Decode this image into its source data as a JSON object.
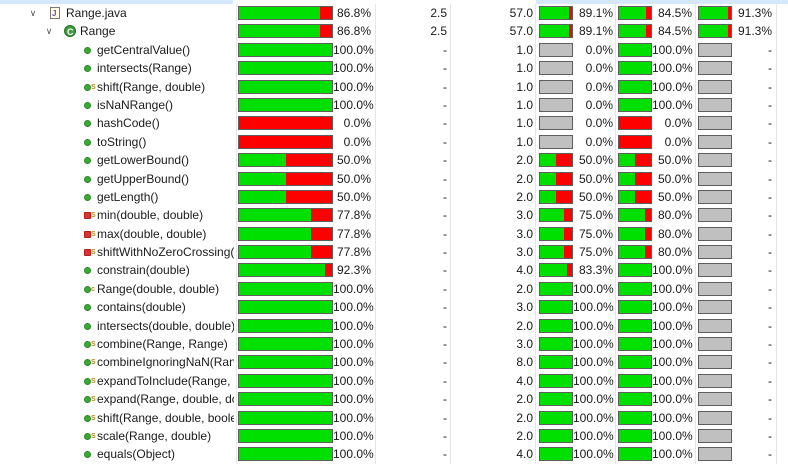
{
  "colors": {
    "covered": "#00e000",
    "missed": "#ff0000",
    "empty": "#c0c0c0",
    "selection": "#cce8ff"
  },
  "rows": [
    {
      "level": 0,
      "icon": "java-file-icon",
      "toggle": "expanded",
      "name": "Range.java",
      "cov": 86.8,
      "cov_label": "86.8%",
      "cx": "2.5",
      "cc": "57.0",
      "c1": 89.1,
      "c1_label": "89.1%",
      "c2": 84.5,
      "c2_label": "84.5%",
      "c3": 91.3,
      "c3_label": "91.3%"
    },
    {
      "level": 1,
      "icon": "class-icon",
      "toggle": "expanded",
      "name": "Range",
      "cov": 86.8,
      "cov_label": "86.8%",
      "cx": "2.5",
      "cc": "57.0",
      "c1": 89.1,
      "c1_label": "89.1%",
      "c2": 84.5,
      "c2_label": "84.5%",
      "c3": 91.3,
      "c3_label": "91.3%"
    },
    {
      "level": 2,
      "icon": "public-method-icon",
      "name": "getCentralValue()",
      "cov": 100,
      "cov_label": "100.0%",
      "cx": "-",
      "cc": "1.0",
      "c1": null,
      "c1_label": "0.0%",
      "c2": 100,
      "c2_label": "100.0%",
      "c3": null,
      "c3_label": "-"
    },
    {
      "level": 2,
      "icon": "public-method-icon",
      "name": "intersects(Range)",
      "cov": 100,
      "cov_label": "100.0%",
      "cx": "-",
      "cc": "1.0",
      "c1": null,
      "c1_label": "0.0%",
      "c2": 100,
      "c2_label": "100.0%",
      "c3": null,
      "c3_label": "-"
    },
    {
      "level": 2,
      "icon": "public-method-icon",
      "badge": "S",
      "name": "shift(Range, double)",
      "cov": 100,
      "cov_label": "100.0%",
      "cx": "-",
      "cc": "1.0",
      "c1": null,
      "c1_label": "0.0%",
      "c2": 100,
      "c2_label": "100.0%",
      "c3": null,
      "c3_label": "-"
    },
    {
      "level": 2,
      "icon": "public-method-icon",
      "name": "isNaNRange()",
      "cov": 100,
      "cov_label": "100.0%",
      "cx": "-",
      "cc": "1.0",
      "c1": null,
      "c1_label": "0.0%",
      "c2": 100,
      "c2_label": "100.0%",
      "c3": null,
      "c3_label": "-"
    },
    {
      "level": 2,
      "icon": "public-method-icon",
      "name": "hashCode()",
      "cov": 0,
      "cov_label": "0.0%",
      "cx": "-",
      "cc": "1.0",
      "c1": null,
      "c1_label": "0.0%",
      "c2": 0,
      "c2_label": "0.0%",
      "c3": null,
      "c3_label": "-"
    },
    {
      "level": 2,
      "icon": "public-method-icon",
      "name": "toString()",
      "cov": 0,
      "cov_label": "0.0%",
      "cx": "-",
      "cc": "1.0",
      "c1": null,
      "c1_label": "0.0%",
      "c2": 0,
      "c2_label": "0.0%",
      "c3": null,
      "c3_label": "-"
    },
    {
      "level": 2,
      "icon": "public-method-icon",
      "name": "getLowerBound()",
      "cov": 50,
      "cov_label": "50.0%",
      "cx": "-",
      "cc": "2.0",
      "c1": 50,
      "c1_label": "50.0%",
      "c2": 50,
      "c2_label": "50.0%",
      "c3": null,
      "c3_label": "-"
    },
    {
      "level": 2,
      "icon": "public-method-icon",
      "name": "getUpperBound()",
      "cov": 50,
      "cov_label": "50.0%",
      "cx": "-",
      "cc": "2.0",
      "c1": 50,
      "c1_label": "50.0%",
      "c2": 50,
      "c2_label": "50.0%",
      "c3": null,
      "c3_label": "-"
    },
    {
      "level": 2,
      "icon": "public-method-icon",
      "name": "getLength()",
      "cov": 50,
      "cov_label": "50.0%",
      "cx": "-",
      "cc": "2.0",
      "c1": 50,
      "c1_label": "50.0%",
      "c2": 50,
      "c2_label": "50.0%",
      "c3": null,
      "c3_label": "-"
    },
    {
      "level": 2,
      "icon": "private-method-icon",
      "badge": "S",
      "name": "min(double, double)",
      "cov": 77.8,
      "cov_label": "77.8%",
      "cx": "-",
      "cc": "3.0",
      "c1": 75,
      "c1_label": "75.0%",
      "c2": 80,
      "c2_label": "80.0%",
      "c3": null,
      "c3_label": "-"
    },
    {
      "level": 2,
      "icon": "private-method-icon",
      "badge": "S",
      "name": "max(double, double)",
      "cov": 77.8,
      "cov_label": "77.8%",
      "cx": "-",
      "cc": "3.0",
      "c1": 75,
      "c1_label": "75.0%",
      "c2": 80,
      "c2_label": "80.0%",
      "c3": null,
      "c3_label": "-"
    },
    {
      "level": 2,
      "icon": "private-method-icon",
      "badge": "S",
      "name": "shiftWithNoZeroCrossing(",
      "cov": 77.8,
      "cov_label": "77.8%",
      "cx": "-",
      "cc": "3.0",
      "c1": 75,
      "c1_label": "75.0%",
      "c2": 80,
      "c2_label": "80.0%",
      "c3": null,
      "c3_label": "-"
    },
    {
      "level": 2,
      "icon": "public-method-icon",
      "name": "constrain(double)",
      "cov": 92.3,
      "cov_label": "92.3%",
      "cx": "-",
      "cc": "4.0",
      "c1": 83.3,
      "c1_label": "83.3%",
      "c2": 100,
      "c2_label": "100.0%",
      "c3": null,
      "c3_label": "-"
    },
    {
      "level": 2,
      "icon": "public-method-icon",
      "badge": "c",
      "name": "Range(double, double)",
      "cov": 100,
      "cov_label": "100.0%",
      "cx": "-",
      "cc": "2.0",
      "c1": 100,
      "c1_label": "100.0%",
      "c2": 100,
      "c2_label": "100.0%",
      "c3": null,
      "c3_label": "-"
    },
    {
      "level": 2,
      "icon": "public-method-icon",
      "name": "contains(double)",
      "cov": 100,
      "cov_label": "100.0%",
      "cx": "-",
      "cc": "3.0",
      "c1": 100,
      "c1_label": "100.0%",
      "c2": 100,
      "c2_label": "100.0%",
      "c3": null,
      "c3_label": "-"
    },
    {
      "level": 2,
      "icon": "public-method-icon",
      "name": "intersects(double, double)",
      "cov": 100,
      "cov_label": "100.0%",
      "cx": "-",
      "cc": "2.0",
      "c1": 100,
      "c1_label": "100.0%",
      "c2": 100,
      "c2_label": "100.0%",
      "c3": null,
      "c3_label": "-"
    },
    {
      "level": 2,
      "icon": "public-method-icon",
      "badge": "S",
      "name": "combine(Range, Range)",
      "cov": 100,
      "cov_label": "100.0%",
      "cx": "-",
      "cc": "3.0",
      "c1": 100,
      "c1_label": "100.0%",
      "c2": 100,
      "c2_label": "100.0%",
      "c3": null,
      "c3_label": "-"
    },
    {
      "level": 2,
      "icon": "public-method-icon",
      "badge": "S",
      "name": "combineIgnoringNaN(Ran",
      "cov": 100,
      "cov_label": "100.0%",
      "cx": "-",
      "cc": "8.0",
      "c1": 100,
      "c1_label": "100.0%",
      "c2": 100,
      "c2_label": "100.0%",
      "c3": null,
      "c3_label": "-"
    },
    {
      "level": 2,
      "icon": "public-method-icon",
      "badge": "S",
      "name": "expandToInclude(Range, c",
      "cov": 100,
      "cov_label": "100.0%",
      "cx": "-",
      "cc": "4.0",
      "c1": 100,
      "c1_label": "100.0%",
      "c2": 100,
      "c2_label": "100.0%",
      "c3": null,
      "c3_label": "-"
    },
    {
      "level": 2,
      "icon": "public-method-icon",
      "badge": "S",
      "name": "expand(Range, double, dc",
      "cov": 100,
      "cov_label": "100.0%",
      "cx": "-",
      "cc": "2.0",
      "c1": 100,
      "c1_label": "100.0%",
      "c2": 100,
      "c2_label": "100.0%",
      "c3": null,
      "c3_label": "-"
    },
    {
      "level": 2,
      "icon": "public-method-icon",
      "badge": "S",
      "name": "shift(Range, double, boole",
      "cov": 100,
      "cov_label": "100.0%",
      "cx": "-",
      "cc": "2.0",
      "c1": 100,
      "c1_label": "100.0%",
      "c2": 100,
      "c2_label": "100.0%",
      "c3": null,
      "c3_label": "-"
    },
    {
      "level": 2,
      "icon": "public-method-icon",
      "badge": "S",
      "name": "scale(Range, double)",
      "cov": 100,
      "cov_label": "100.0%",
      "cx": "-",
      "cc": "2.0",
      "c1": 100,
      "c1_label": "100.0%",
      "c2": 100,
      "c2_label": "100.0%",
      "c3": null,
      "c3_label": "-"
    },
    {
      "level": 2,
      "icon": "public-method-icon",
      "name": "equals(Object)",
      "cov": 100,
      "cov_label": "100.0%",
      "cx": "-",
      "cc": "4.0",
      "c1": 100,
      "c1_label": "100.0%",
      "c2": 100,
      "c2_label": "100.0%",
      "c3": null,
      "c3_label": "-"
    }
  ]
}
